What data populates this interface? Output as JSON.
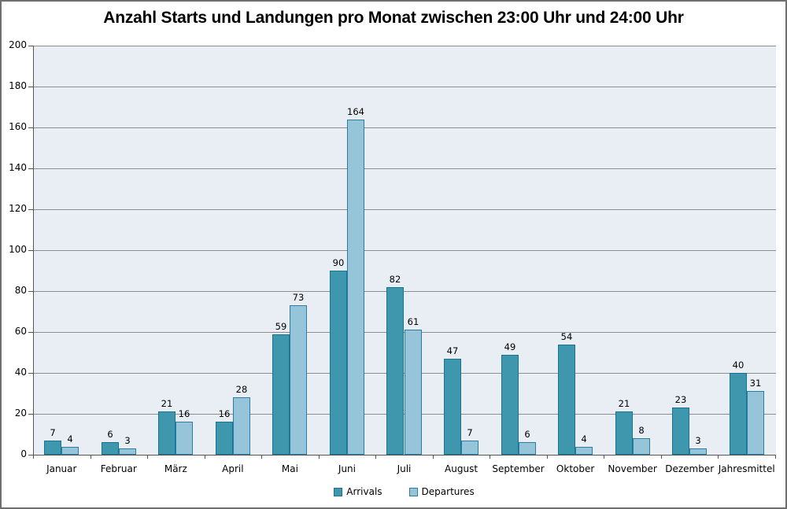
{
  "title": "Anzahl Starts und Landungen pro Monat zwischen 23:00 Uhr und 24:00 Uhr",
  "chart_data": {
    "type": "bar",
    "title": "Anzahl Starts und Landungen pro Monat zwischen 23:00 Uhr und 24:00 Uhr",
    "categories": [
      "Januar",
      "Februar",
      "März",
      "April",
      "Mai",
      "Juni",
      "Juli",
      "August",
      "September",
      "Oktober",
      "November",
      "Dezember",
      "Jahresmittel"
    ],
    "series": [
      {
        "name": "Arrivals",
        "fill": "#3F97AE",
        "border": "#1B7391",
        "values": [
          7,
          6,
          21,
          16,
          59,
          90,
          82,
          47,
          49,
          54,
          21,
          23,
          40
        ]
      },
      {
        "name": "Departures",
        "fill": "#96C5D9",
        "border": "#2D7CA1",
        "values": [
          4,
          3,
          16,
          28,
          73,
          164,
          61,
          7,
          6,
          4,
          8,
          3,
          31
        ]
      }
    ],
    "ylim": [
      0,
      200
    ],
    "ytick_step": 20,
    "grid": true,
    "data_labels": true,
    "legend_position": "bottom",
    "xlabel": "",
    "ylabel": "",
    "colors": {
      "plot_bg": "#E8EEF4",
      "grid": "#8E8E8E",
      "axis": "#555555",
      "text": "#000000",
      "frame": "#6F6F6F"
    }
  }
}
